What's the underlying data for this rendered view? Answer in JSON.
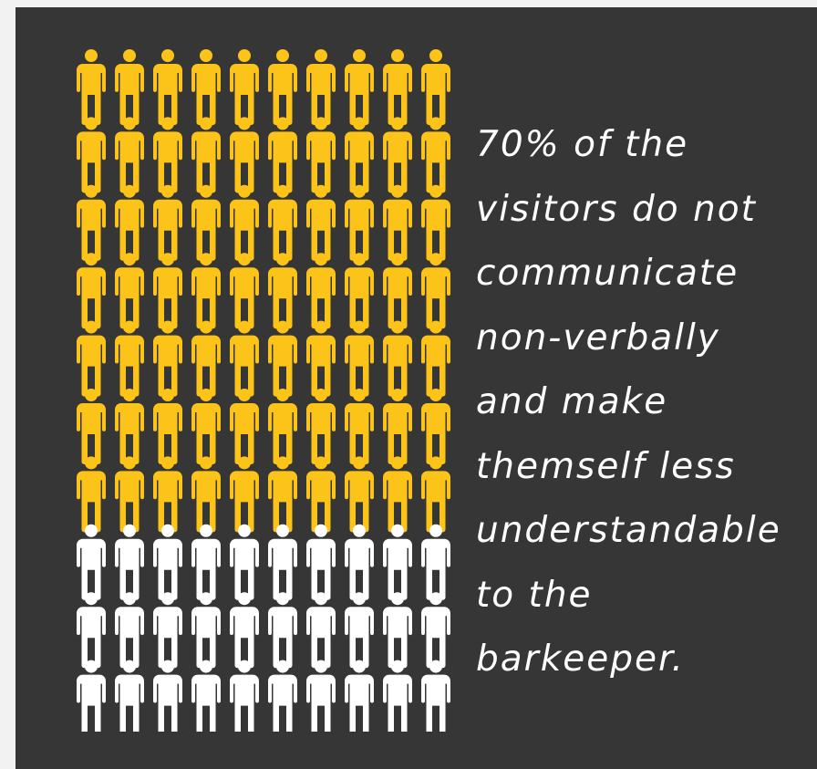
{
  "caption": {
    "lines": [
      "70% of the",
      "visitors do not",
      "communicate",
      "non-verbally",
      "and make",
      "themself less",
      "understandable",
      "to the",
      "barkeeper."
    ]
  },
  "chart_data": {
    "type": "pictogram",
    "total": 100,
    "columns": 10,
    "rows": 10,
    "fill_order": "rows-top-to-bottom",
    "series": [
      {
        "value": 70,
        "color": "#fcc419"
      },
      {
        "value": 30,
        "color": "#ffffff"
      }
    ],
    "icon": "person-icon"
  },
  "colors": {
    "panel_background": "#363636",
    "page_background": "#f2f2f2",
    "text": "#ffffff"
  }
}
